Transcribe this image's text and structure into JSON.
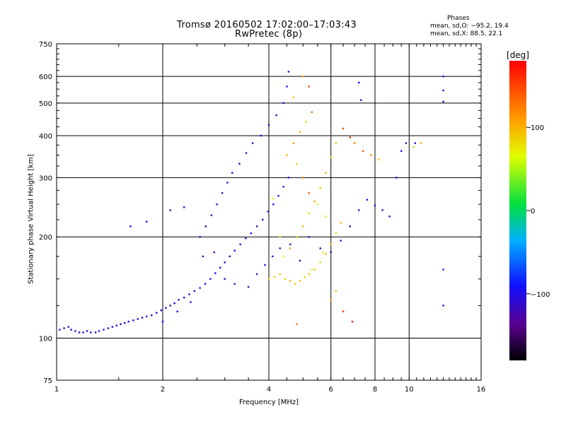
{
  "title": "Tromsø 20160502 17:02:00–17:03:43",
  "subtitle": "RwPretec (8p)",
  "phases": {
    "title": "Phases",
    "o_line": "mean, sd,O: −95.2, 19.4",
    "x_line": "mean, sd,X:  88.5, 22.1"
  },
  "colorbar": {
    "label": "[deg]",
    "ticks": [
      {
        "value": 100,
        "label": "100"
      },
      {
        "value": 0,
        "label": "0"
      },
      {
        "value": -100,
        "label": "−100"
      }
    ],
    "range": [
      -180,
      180
    ]
  },
  "chart_data": {
    "type": "scatter",
    "title": "Tromsø 20160502 17:02:00–17:03:43",
    "subtitle": "RwPretec (8p)",
    "xlabel": "Frequency [MHz]",
    "ylabel": "Stationary phase Virtual Height [km]",
    "x_scale": "log2",
    "y_scale": "log",
    "xlim": [
      1,
      16
    ],
    "ylim": [
      75,
      750
    ],
    "x_ticks": [
      1,
      2,
      4,
      6,
      8,
      10,
      16
    ],
    "x_tick_labels": [
      "1",
      "2",
      "4",
      "6",
      "8",
      "10",
      "16"
    ],
    "y_ticks": [
      75,
      100,
      200,
      300,
      400,
      500,
      600,
      750
    ],
    "y_tick_labels": [
      "75",
      "100",
      "200",
      "300",
      "400",
      "500",
      "600",
      "750"
    ],
    "grid": true,
    "color_by": "phase_deg",
    "colormap": "rainbow",
    "series": [
      {
        "name": "O",
        "mean_phase": -95.2,
        "sd_phase": 19.4,
        "points": [
          [
            1.02,
            106,
            -110
          ],
          [
            1.05,
            107,
            -105
          ],
          [
            1.08,
            108,
            -100
          ],
          [
            1.1,
            106,
            -115
          ],
          [
            1.13,
            105,
            -108
          ],
          [
            1.16,
            104,
            -112
          ],
          [
            1.19,
            104,
            -100
          ],
          [
            1.22,
            105,
            -98
          ],
          [
            1.25,
            104,
            -105
          ],
          [
            1.29,
            104,
            -110
          ],
          [
            1.32,
            105,
            -95
          ],
          [
            1.36,
            106,
            -100
          ],
          [
            1.4,
            107,
            -118
          ],
          [
            1.44,
            108,
            -92
          ],
          [
            1.48,
            109,
            -104
          ],
          [
            1.52,
            110,
            -120
          ],
          [
            1.56,
            111,
            -96
          ],
          [
            1.6,
            112,
            -99
          ],
          [
            1.65,
            113,
            -103
          ],
          [
            1.7,
            114,
            -90
          ],
          [
            1.75,
            115,
            -108
          ],
          [
            1.8,
            116,
            -97
          ],
          [
            1.86,
            117,
            -101
          ],
          [
            1.92,
            119,
            -94
          ],
          [
            1.98,
            121,
            -106
          ],
          [
            2.04,
            123,
            -99
          ],
          [
            2.1,
            125,
            -112
          ],
          [
            2.16,
            127,
            -91
          ],
          [
            2.22,
            130,
            -104
          ],
          [
            2.3,
            132,
            -98
          ],
          [
            2.38,
            135,
            -115
          ],
          [
            2.46,
            138,
            -100
          ],
          [
            2.55,
            141,
            -93
          ],
          [
            2.64,
            145,
            -107
          ],
          [
            2.73,
            150,
            -99
          ],
          [
            2.82,
            156,
            -102
          ],
          [
            2.91,
            162,
            -95
          ],
          [
            3.0,
            168,
            -110
          ],
          [
            3.1,
            175,
            -100
          ],
          [
            3.2,
            182,
            -96
          ],
          [
            3.32,
            190,
            -108
          ],
          [
            3.44,
            198,
            -101
          ],
          [
            3.56,
            205,
            -94
          ],
          [
            3.7,
            215,
            -112
          ],
          [
            3.84,
            225,
            -99
          ],
          [
            3.98,
            238,
            -104
          ],
          [
            4.12,
            250,
            -97
          ],
          [
            4.26,
            265,
            -110
          ],
          [
            4.4,
            282,
            -102
          ],
          [
            4.55,
            300,
            -95
          ],
          [
            2.55,
            200,
            -120
          ],
          [
            2.65,
            215,
            -104
          ],
          [
            2.75,
            232,
            -130
          ],
          [
            2.85,
            250,
            -98
          ],
          [
            2.95,
            270,
            -115
          ],
          [
            3.05,
            290,
            -105
          ],
          [
            3.15,
            310,
            -92
          ],
          [
            3.3,
            330,
            -110
          ],
          [
            3.45,
            355,
            -100
          ],
          [
            3.6,
            380,
            -118
          ],
          [
            3.8,
            400,
            -95
          ],
          [
            4.0,
            430,
            -108
          ],
          [
            4.2,
            460,
            -112
          ],
          [
            4.4,
            500,
            -100
          ],
          [
            4.5,
            560,
            -96
          ],
          [
            4.55,
            620,
            -105
          ],
          [
            1.62,
            215,
            -100
          ],
          [
            1.8,
            222,
            -98
          ],
          [
            2.1,
            240,
            -105
          ],
          [
            2.3,
            245,
            -100
          ],
          [
            2.6,
            175,
            -130
          ],
          [
            2.8,
            180,
            -140
          ],
          [
            3.0,
            150,
            -125
          ],
          [
            3.2,
            145,
            -110
          ],
          [
            3.5,
            142,
            -120
          ],
          [
            3.7,
            155,
            -108
          ],
          [
            3.9,
            165,
            -100
          ],
          [
            4.1,
            175,
            -98
          ],
          [
            4.3,
            185,
            -106
          ],
          [
            4.6,
            190,
            -115
          ],
          [
            4.9,
            170,
            -100
          ],
          [
            5.2,
            200,
            -105
          ],
          [
            5.6,
            185,
            -98
          ],
          [
            6.0,
            180,
            -110
          ],
          [
            6.4,
            195,
            -100
          ],
          [
            6.8,
            215,
            -102
          ],
          [
            7.2,
            240,
            -108
          ],
          [
            7.6,
            258,
            -98
          ],
          [
            8.0,
            248,
            -104
          ],
          [
            8.4,
            240,
            -100
          ],
          [
            8.8,
            230,
            -106
          ],
          [
            9.2,
            300,
            -100
          ],
          [
            9.5,
            360,
            -95
          ],
          [
            9.8,
            380,
            -104
          ],
          [
            10.4,
            380,
            -96
          ],
          [
            7.2,
            575,
            -100
          ],
          [
            7.3,
            510,
            -105
          ],
          [
            12.5,
            600,
            -108
          ],
          [
            12.5,
            545,
            -100
          ],
          [
            12.5,
            505,
            -104
          ],
          [
            12.5,
            160,
            -110
          ],
          [
            12.5,
            125,
            -100
          ],
          [
            2.0,
            112,
            -100
          ],
          [
            2.2,
            120,
            -105
          ],
          [
            2.4,
            128,
            -98
          ]
        ]
      },
      {
        "name": "X",
        "mean_phase": 88.5,
        "sd_phase": 22.1,
        "points": [
          [
            4.0,
            150,
            90
          ],
          [
            4.15,
            152,
            85
          ],
          [
            4.3,
            155,
            95
          ],
          [
            4.45,
            150,
            80
          ],
          [
            4.6,
            148,
            100
          ],
          [
            4.75,
            145,
            88
          ],
          [
            4.9,
            148,
            92
          ],
          [
            5.05,
            152,
            84
          ],
          [
            5.2,
            155,
            96
          ],
          [
            5.4,
            160,
            90
          ],
          [
            5.6,
            168,
            86
          ],
          [
            5.8,
            178,
            94
          ],
          [
            6.0,
            190,
            88
          ],
          [
            6.2,
            205,
            80
          ],
          [
            6.4,
            220,
            95
          ],
          [
            4.4,
            175,
            70
          ],
          [
            4.6,
            185,
            110
          ],
          [
            4.8,
            200,
            85
          ],
          [
            5.0,
            215,
            92
          ],
          [
            5.2,
            235,
            78
          ],
          [
            5.4,
            255,
            104
          ],
          [
            5.6,
            280,
            88
          ],
          [
            5.8,
            310,
            96
          ],
          [
            6.0,
            345,
            84
          ],
          [
            6.2,
            380,
            100
          ],
          [
            4.8,
            330,
            90
          ],
          [
            5.0,
            300,
            120
          ],
          [
            5.2,
            270,
            140
          ],
          [
            5.5,
            250,
            60
          ],
          [
            5.8,
            230,
            75
          ],
          [
            4.5,
            350,
            100
          ],
          [
            4.7,
            380,
            110
          ],
          [
            4.9,
            410,
            95
          ],
          [
            5.1,
            440,
            85
          ],
          [
            5.3,
            470,
            130
          ],
          [
            5.0,
            600,
            105
          ],
          [
            5.2,
            560,
            150
          ],
          [
            4.7,
            520,
            90
          ],
          [
            6.5,
            420,
            150
          ],
          [
            6.8,
            395,
            160
          ],
          [
            7.0,
            380,
            120
          ],
          [
            7.4,
            360,
            140
          ],
          [
            7.8,
            350,
            115
          ],
          [
            8.2,
            340,
            95
          ],
          [
            10.3,
            370,
            90
          ],
          [
            10.8,
            380,
            100
          ],
          [
            6.0,
            130,
            110
          ],
          [
            6.2,
            138,
            95
          ],
          [
            6.5,
            120,
            160
          ],
          [
            6.9,
            112,
            170
          ],
          [
            4.8,
            110,
            120
          ],
          [
            5.3,
            160,
            60
          ],
          [
            5.7,
            180,
            70
          ],
          [
            4.3,
            200,
            55
          ],
          [
            4.1,
            260,
            65
          ]
        ]
      }
    ]
  }
}
